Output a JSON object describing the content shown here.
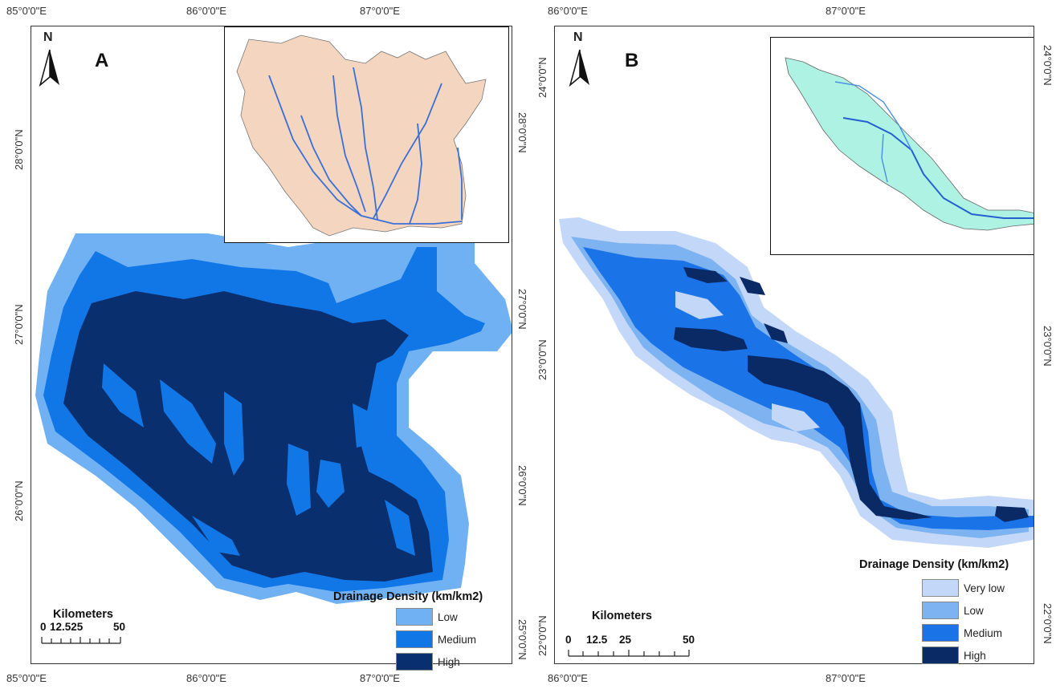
{
  "panel_a": {
    "letter": "A",
    "north_label": "N",
    "x_ticks": [
      "85°0'0\"E",
      "86°0'0\"E",
      "87°0'0\"E"
    ],
    "y_ticks": [
      "28°0'0\"N",
      "27°0'0\"N",
      "26°0'0\"N",
      "25°0'0\"N"
    ],
    "scale": {
      "title": "Kilometers",
      "labels": [
        "0",
        "12.525",
        "50"
      ]
    },
    "legend": {
      "title": "Drainage Density (km/km2)",
      "items": [
        {
          "label": "Low",
          "color": "#6fb1f3"
        },
        {
          "label": "Medium",
          "color": "#1277e6"
        },
        {
          "label": "High",
          "color": "#0a2f6e"
        }
      ]
    },
    "inset_fill": "#f4d6c0",
    "inset_river_color": "#3b6fd8"
  },
  "panel_b": {
    "letter": "B",
    "north_label": "N",
    "x_ticks": [
      "86°0'0\"E",
      "87°0'0\"E"
    ],
    "y_ticks": [
      "24°0'0\"N",
      "23°0'0\"N",
      "22°0'0\"N"
    ],
    "scale": {
      "title": "Kilometers",
      "labels": [
        "0",
        "12.5",
        "25",
        "50"
      ]
    },
    "legend": {
      "title": "Drainage Density (km/km2)",
      "items": [
        {
          "label": "Very low",
          "color": "#c3d7f8"
        },
        {
          "label": "Low",
          "color": "#7db3f0"
        },
        {
          "label": "Medium",
          "color": "#1a74e8"
        },
        {
          "label": "High",
          "color": "#0a2a66"
        }
      ]
    },
    "inset_fill": "#aef2e4",
    "inset_river_color": "#2660d0"
  }
}
